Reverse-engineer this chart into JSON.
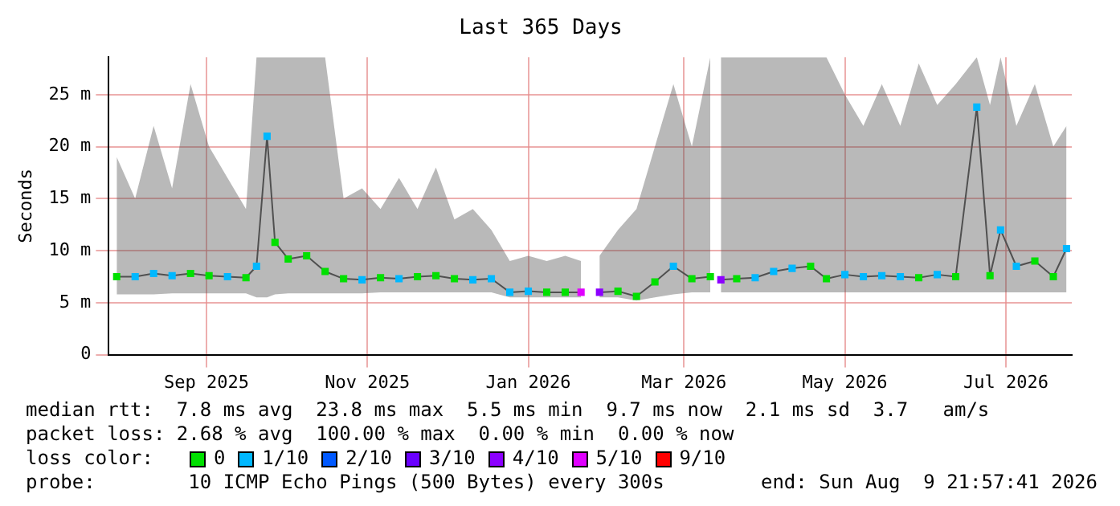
{
  "chart_data": {
    "type": "line",
    "title": "Last 365 Days",
    "ylabel": "Seconds",
    "legend": "bottom",
    "legend_title": "loss color:",
    "grid": true,
    "line_style": "solid",
    "xlim": [
      "2025-08-10",
      "2026-08-10"
    ],
    "xticks": [
      {
        "value": "2025-09-16",
        "label": "Sep 2025"
      },
      {
        "value": "2025-11-16",
        "label": "Nov 2025"
      },
      {
        "value": "2026-01-16",
        "label": "Jan 2026"
      },
      {
        "value": "2026-03-16",
        "label": "Mar 2026"
      },
      {
        "value": "2026-05-16",
        "label": "May 2026"
      },
      {
        "value": "2026-07-16",
        "label": "Jul 2026"
      }
    ],
    "ylim": [
      0,
      28.6
    ],
    "yticks": [
      0,
      {
        "value": 5,
        "label": "5 m"
      },
      {
        "value": 10,
        "label": "10 m"
      },
      {
        "value": 15,
        "label": "15 m"
      },
      {
        "value": 20,
        "label": "20 m"
      },
      {
        "value": 25,
        "label": "25 m"
      }
    ],
    "x": [
      "2025-08-13",
      "2025-08-20",
      "2025-08-27",
      "2025-09-03",
      "2025-09-10",
      "2025-09-17",
      "2025-09-24",
      "2025-10-01",
      "2025-10-05",
      "2025-10-09",
      "2025-10-12",
      "2025-10-17",
      "2025-10-24",
      "2025-10-31",
      "2025-11-07",
      "2025-11-14",
      "2025-11-21",
      "2025-11-28",
      "2025-12-05",
      "2025-12-12",
      "2025-12-19",
      "2025-12-26",
      "2026-01-02",
      "2026-01-09",
      "2026-01-16",
      "2026-01-23",
      "2026-01-30",
      "2026-02-05",
      "2026-02-08",
      "2026-02-12",
      "2026-02-19",
      "2026-02-26",
      "2026-03-05",
      "2026-03-12",
      "2026-03-19",
      "2026-03-26",
      "2026-03-28",
      "2026-03-30",
      "2026-04-05",
      "2026-04-12",
      "2026-04-19",
      "2026-04-26",
      "2026-05-03",
      "2026-05-09",
      "2026-05-16",
      "2026-05-23",
      "2026-05-30",
      "2026-06-06",
      "2026-06-13",
      "2026-06-20",
      "2026-06-27",
      "2026-07-05",
      "2026-07-10",
      "2026-07-14",
      "2026-07-20",
      "2026-07-27",
      "2026-08-03",
      "2026-08-08"
    ],
    "series": [
      {
        "color": "#505050",
        "values": [
          7.5,
          7.5,
          7.8,
          7.6,
          7.8,
          7.6,
          7.5,
          7.4,
          8.5,
          21,
          10.8,
          9.2,
          9.5,
          8,
          7.3,
          7.2,
          7.4,
          7.3,
          7.5,
          7.6,
          7.3,
          7.2,
          7.3,
          6,
          6.1,
          6,
          6,
          6,
          null,
          6,
          6.1,
          5.6,
          7,
          8.5,
          7.3,
          7.5,
          null,
          7.2,
          7.3,
          7.4,
          8,
          8.3,
          8.5,
          7.3,
          7.7,
          7.5,
          7.6,
          7.5,
          7.4,
          7.7,
          7.5,
          23.8,
          7.6,
          12,
          8.5,
          9,
          7.5,
          10.2
        ],
        "lower": [
          5.8,
          5.8,
          5.8,
          5.9,
          5.9,
          5.9,
          5.9,
          5.9,
          5.5,
          5.5,
          5.8,
          5.9,
          5.9,
          5.9,
          5.9,
          5.9,
          6,
          6,
          6,
          6,
          6,
          6,
          6,
          5.5,
          5.5,
          5.5,
          5.5,
          5.5,
          null,
          5.5,
          5.5,
          5.2,
          5.5,
          5.8,
          6,
          6,
          null,
          6,
          6,
          6,
          6,
          6,
          6,
          6,
          6,
          6,
          6,
          6,
          6,
          6,
          6,
          6,
          6,
          6,
          6,
          6,
          6,
          6
        ],
        "upper": [
          19,
          15,
          22,
          16,
          26,
          20,
          17,
          14,
          28.6,
          28.6,
          28.6,
          28.6,
          28.6,
          28.6,
          15,
          16,
          14,
          17,
          14,
          18,
          13,
          14,
          12,
          9,
          9.5,
          9,
          9.5,
          9,
          null,
          9.5,
          12,
          14,
          20,
          26,
          20,
          28.6,
          null,
          28.6,
          28.6,
          28.6,
          28.6,
          28.6,
          28.6,
          28.6,
          25,
          22,
          26,
          22,
          28,
          24,
          26,
          28.6,
          24,
          28.6,
          22,
          26,
          20,
          22
        ]
      },
      {
        "type": "scatter",
        "marker": "square",
        "name": "0",
        "color": "#00e000",
        "values": [
          7.5,
          null,
          null,
          null,
          7.8,
          7.6,
          null,
          7.4,
          null,
          null,
          10.8,
          9.2,
          9.5,
          8,
          7.3,
          null,
          7.4,
          null,
          7.5,
          7.6,
          7.3,
          null,
          null,
          null,
          null,
          6,
          6,
          null,
          null,
          null,
          6.1,
          5.6,
          7,
          null,
          7.3,
          7.5,
          null,
          null,
          7.3,
          null,
          null,
          null,
          8.5,
          7.3,
          null,
          null,
          null,
          null,
          7.4,
          null,
          7.5,
          null,
          7.6,
          null,
          null,
          9,
          7.5,
          null
        ]
      },
      {
        "type": "scatter",
        "marker": "square",
        "name": "1/10",
        "color": "#00b8ff",
        "values": [
          null,
          7.5,
          7.8,
          7.6,
          null,
          null,
          7.5,
          null,
          8.5,
          21,
          null,
          null,
          null,
          null,
          null,
          7.2,
          null,
          7.3,
          null,
          null,
          null,
          7.2,
          7.3,
          6,
          6.1,
          null,
          null,
          null,
          null,
          null,
          null,
          null,
          null,
          8.5,
          null,
          null,
          null,
          null,
          null,
          7.4,
          8,
          8.3,
          null,
          null,
          7.7,
          7.5,
          7.6,
          7.5,
          null,
          7.7,
          null,
          23.8,
          null,
          12,
          8.5,
          null,
          null,
          10.2
        ]
      },
      {
        "type": "scatter",
        "marker": "square",
        "name": "2/10",
        "color": "#0059ff",
        "values": [
          null,
          null,
          null,
          null,
          null,
          null,
          null,
          null,
          null,
          null,
          null,
          null,
          null,
          null,
          null,
          null,
          null,
          null,
          null,
          null,
          null,
          null,
          null,
          null,
          null,
          null,
          null,
          null,
          null,
          null,
          null,
          null,
          null,
          null,
          null,
          null,
          null,
          null,
          null,
          null,
          null,
          null,
          null,
          null,
          null,
          null,
          null,
          null,
          null,
          null,
          null,
          null,
          null,
          null,
          null,
          null,
          null,
          null
        ]
      },
      {
        "type": "scatter",
        "marker": "square",
        "name": "3/10",
        "color": "#6a00ff",
        "values": [
          null,
          null,
          null,
          null,
          null,
          null,
          null,
          null,
          null,
          null,
          null,
          null,
          null,
          null,
          null,
          null,
          null,
          null,
          null,
          null,
          null,
          null,
          null,
          null,
          null,
          null,
          null,
          null,
          null,
          null,
          null,
          null,
          null,
          null,
          null,
          null,
          null,
          null,
          null,
          null,
          null,
          null,
          null,
          null,
          null,
          null,
          null,
          null,
          null,
          null,
          null,
          null,
          null,
          null,
          null,
          null,
          null,
          null
        ]
      },
      {
        "type": "scatter",
        "marker": "square",
        "name": "4/10",
        "color": "#8c00ff",
        "values": [
          null,
          null,
          null,
          null,
          null,
          null,
          null,
          null,
          null,
          null,
          null,
          null,
          null,
          null,
          null,
          null,
          null,
          null,
          null,
          null,
          null,
          null,
          null,
          null,
          null,
          null,
          null,
          null,
          null,
          6,
          null,
          null,
          null,
          null,
          null,
          null,
          null,
          7.2,
          null,
          null,
          null,
          null,
          null,
          null,
          null,
          null,
          null,
          null,
          null,
          null,
          null,
          null,
          null,
          null,
          null,
          null,
          null,
          null
        ]
      },
      {
        "type": "scatter",
        "marker": "square",
        "name": "5/10",
        "color": "#e000ff",
        "values": [
          null,
          null,
          null,
          null,
          null,
          null,
          null,
          null,
          null,
          null,
          null,
          null,
          null,
          null,
          null,
          null,
          null,
          null,
          null,
          null,
          null,
          null,
          null,
          null,
          null,
          null,
          null,
          6,
          null,
          null,
          null,
          null,
          null,
          null,
          null,
          null,
          null,
          null,
          null,
          null,
          null,
          null,
          null,
          null,
          null,
          null,
          null,
          null,
          null,
          null,
          null,
          null,
          null,
          null,
          null,
          null,
          null,
          null
        ]
      },
      {
        "type": "scatter",
        "marker": "square",
        "name": "9/10",
        "color": "#ff0000",
        "values": [
          null,
          null,
          null,
          null,
          null,
          null,
          null,
          null,
          null,
          null,
          null,
          null,
          null,
          null,
          null,
          null,
          null,
          null,
          null,
          null,
          null,
          null,
          null,
          null,
          null,
          null,
          null,
          null,
          null,
          null,
          null,
          null,
          null,
          null,
          null,
          null,
          null,
          null,
          null,
          null,
          null,
          null,
          null,
          null,
          null,
          null,
          null,
          null,
          null,
          null,
          null,
          null,
          null,
          null,
          null,
          null,
          null,
          null
        ]
      }
    ],
    "annotations": [
      "median rtt:  7.8 ms avg  23.8 ms max  5.5 ms min  9.7 ms now  2.1 ms sd  3.7   am/s",
      "packet loss: 2.68 % avg  100.00 % max  0.00 % min  0.00 % now",
      "probe:        10 ICMP Echo Pings (500 Bytes) every 300s",
      "end: Sun Aug  9 21:57:41 2026"
    ]
  }
}
